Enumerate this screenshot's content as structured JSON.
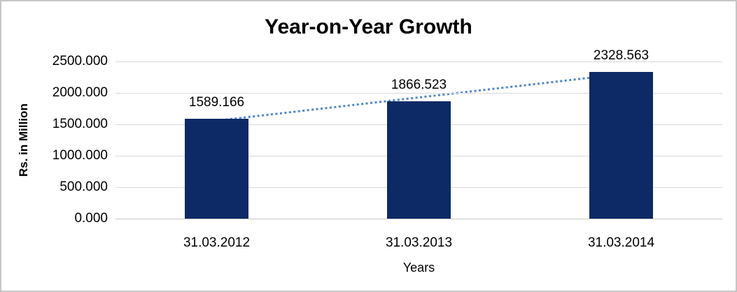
{
  "chart_data": {
    "type": "bar",
    "title": "Year-on-Year Growth",
    "xlabel": "Years",
    "ylabel": "Rs. in Million",
    "categories": [
      "31.03.2012",
      "31.03.2013",
      "31.03.2014"
    ],
    "values": [
      1589.166,
      1866.523,
      2328.563
    ],
    "data_labels": [
      "1589.166",
      "1866.523",
      "2328.563"
    ],
    "ylim": [
      0,
      2500
    ],
    "ytick_step": 500,
    "ytick_labels": [
      "0.000",
      "500.000",
      "1000.000",
      "1500.000",
      "2000.000",
      "2500.000"
    ],
    "grid": true,
    "legend_position": "none",
    "trendline": {
      "type": "linear",
      "style": "dotted"
    },
    "colors": {
      "bar": "#0d2a66",
      "trendline": "#4e87c7",
      "gridline": "#d9d9d9",
      "axis_line": "#c6c6c6",
      "frame_border": "#c6c6c6",
      "text": "#000000"
    }
  }
}
